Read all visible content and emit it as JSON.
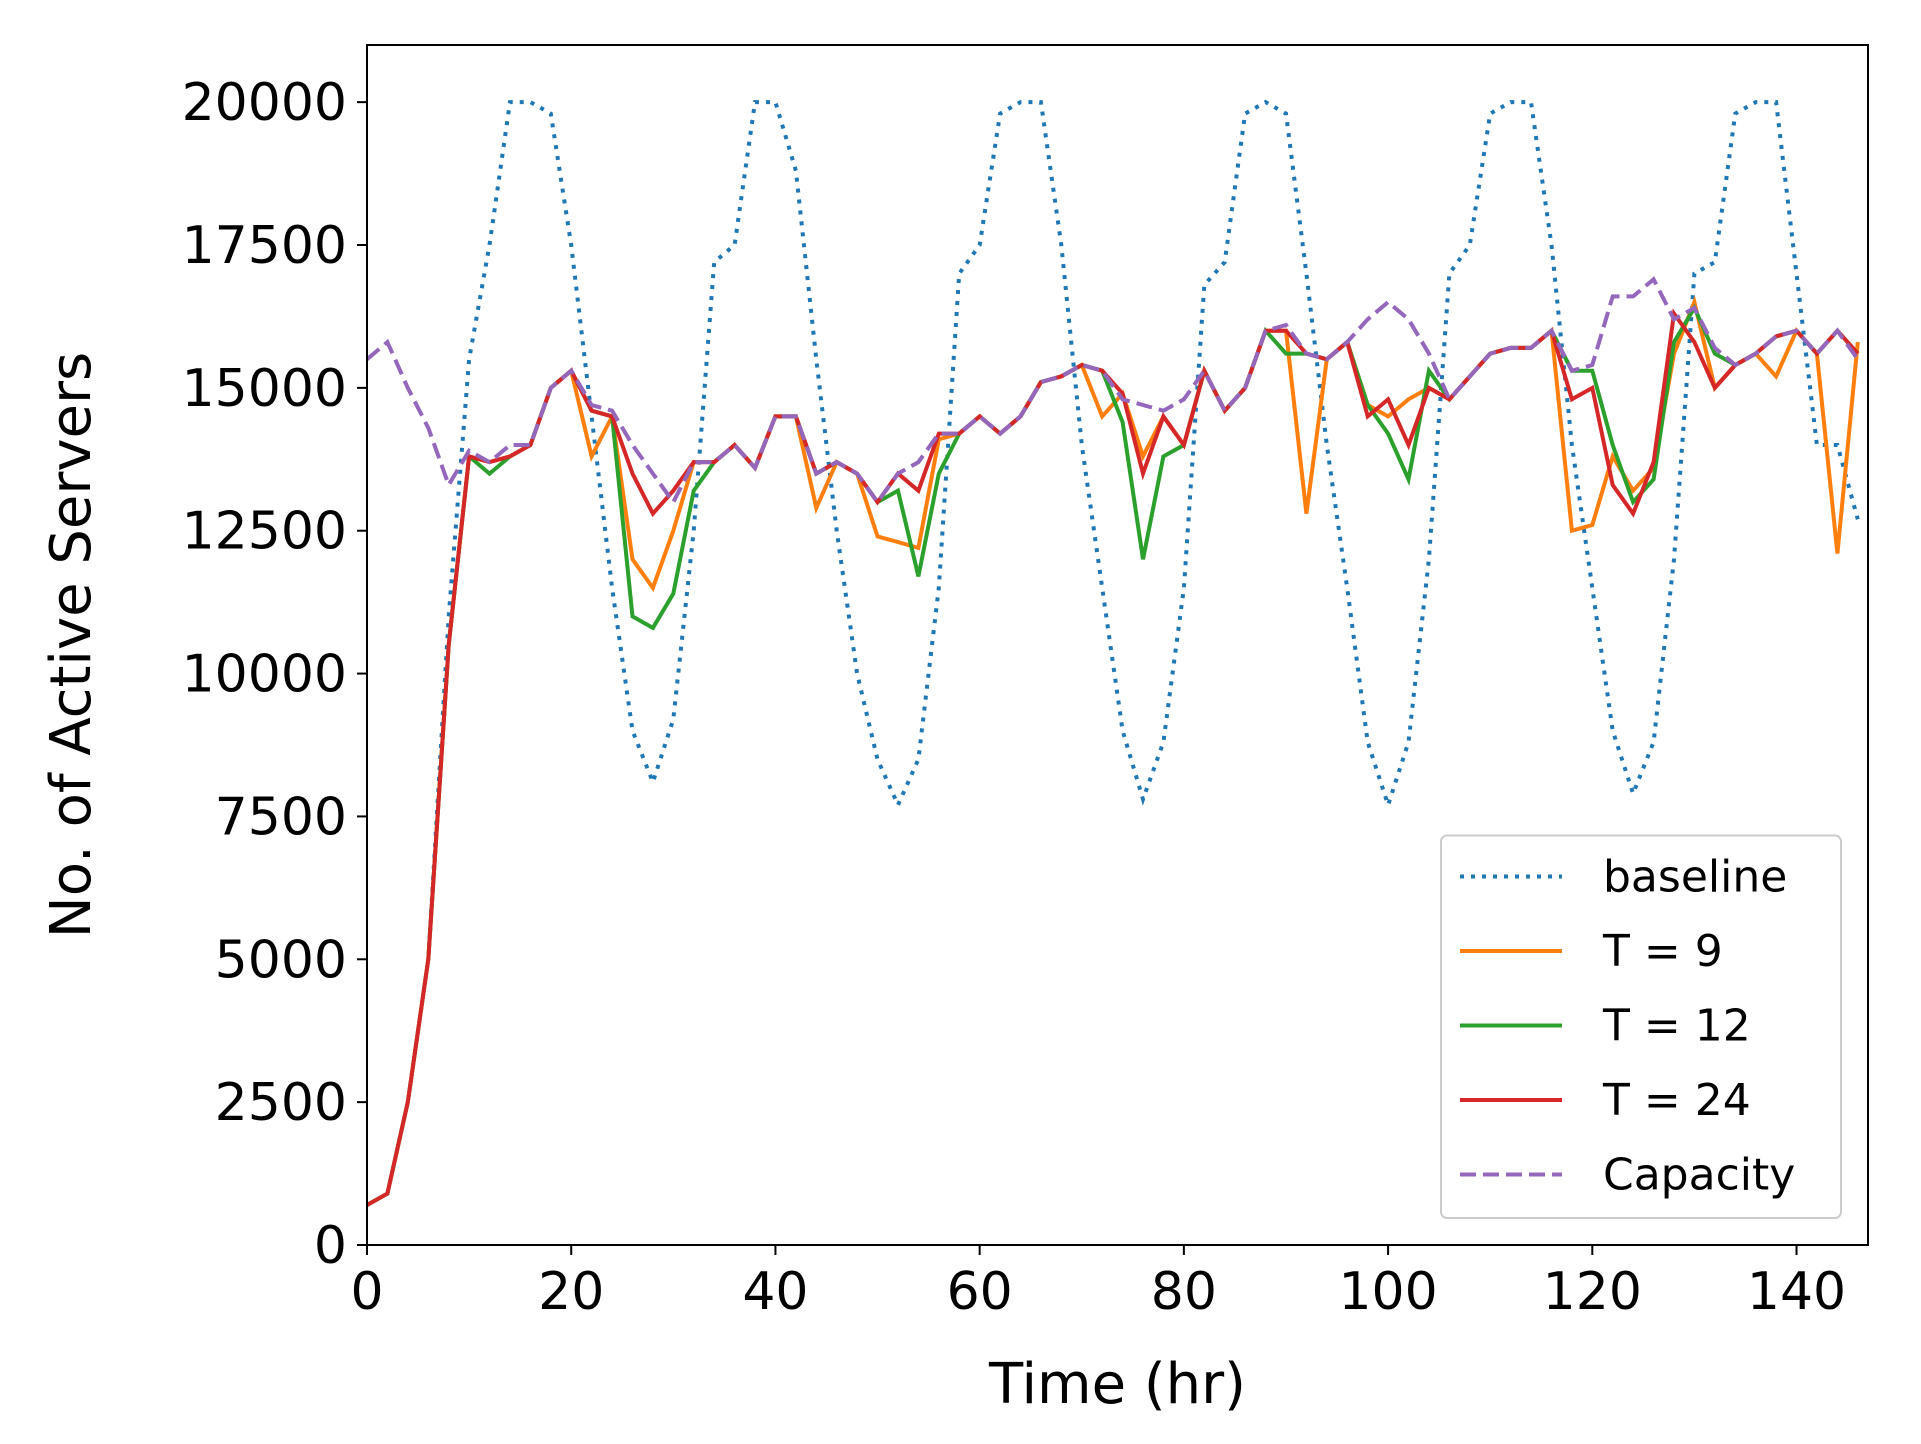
{
  "chart_data": {
    "type": "line",
    "xlabel": "Time (hr)",
    "ylabel": "No. of Active Servers",
    "x": [
      0,
      2,
      4,
      6,
      8,
      10,
      12,
      14,
      16,
      18,
      20,
      22,
      24,
      26,
      28,
      30,
      32,
      34,
      36,
      38,
      40,
      42,
      44,
      46,
      48,
      50,
      52,
      54,
      56,
      58,
      60,
      62,
      64,
      66,
      68,
      70,
      72,
      74,
      76,
      78,
      80,
      82,
      84,
      86,
      88,
      90,
      92,
      94,
      96,
      98,
      100,
      102,
      104,
      106,
      108,
      110,
      112,
      114,
      116,
      118,
      120,
      122,
      124,
      126,
      128,
      130,
      132,
      134,
      136,
      138,
      140,
      142,
      144,
      146
    ],
    "xlim": [
      0,
      147
    ],
    "xticks": [
      0,
      20,
      40,
      60,
      80,
      100,
      120,
      140
    ],
    "ylim": [
      0,
      21000
    ],
    "yticks": [
      0,
      2500,
      5000,
      7500,
      10000,
      12500,
      15000,
      17500,
      20000
    ],
    "legend": "lower right",
    "series": [
      {
        "name": "baseline",
        "color": "#1f77b4",
        "style": "dotted",
        "values": [
          700,
          900,
          2500,
          5000,
          11000,
          15500,
          17500,
          20000,
          20000,
          19800,
          17500,
          14500,
          11500,
          9000,
          8100,
          9200,
          12500,
          17200,
          17500,
          20000,
          20000,
          18800,
          15500,
          12500,
          10000,
          8500,
          7700,
          8500,
          11500,
          17000,
          17500,
          19800,
          20000,
          20000,
          17500,
          14000,
          11500,
          9000,
          7800,
          8800,
          11500,
          16800,
          17200,
          19800,
          20000,
          19800,
          17000,
          14000,
          11500,
          8800,
          7700,
          8800,
          12000,
          17000,
          17500,
          19800,
          20000,
          20000,
          17500,
          14000,
          11500,
          9000,
          7900,
          8800,
          12000,
          17000,
          17200,
          19800,
          20000,
          20000,
          17000,
          14000,
          14000,
          12700
        ]
      },
      {
        "name": "T = 9",
        "color": "#ff7f0e",
        "style": "solid",
        "values": [
          700,
          900,
          2500,
          5000,
          10500,
          13800,
          13700,
          13800,
          14000,
          15000,
          15300,
          13800,
          14500,
          12000,
          11500,
          12500,
          13700,
          13700,
          14000,
          13600,
          14500,
          14500,
          12900,
          13700,
          13500,
          12400,
          12300,
          12200,
          14100,
          14200,
          14500,
          14200,
          14500,
          15100,
          15200,
          15400,
          14500,
          14900,
          13800,
          14500,
          14000,
          15300,
          14600,
          15000,
          16000,
          16000,
          12800,
          15500,
          15800,
          14700,
          14500,
          14800,
          15000,
          14800,
          15200,
          15600,
          15700,
          15700,
          16000,
          12500,
          12600,
          13800,
          13200,
          13600,
          15600,
          16500,
          15000,
          15400,
          15600,
          15200,
          16000,
          15600,
          12100,
          15800
        ]
      },
      {
        "name": "T = 12",
        "color": "#2ca02c",
        "style": "solid",
        "values": [
          700,
          900,
          2500,
          5000,
          10500,
          13800,
          13500,
          13800,
          14000,
          15000,
          15300,
          14600,
          14500,
          11000,
          10800,
          11400,
          13200,
          13700,
          14000,
          13600,
          14500,
          14500,
          13500,
          13700,
          13500,
          13000,
          13200,
          11700,
          13500,
          14200,
          14500,
          14200,
          14500,
          15100,
          15200,
          15400,
          15300,
          14400,
          12000,
          13800,
          14000,
          15300,
          14600,
          15000,
          16000,
          15600,
          15600,
          15500,
          15800,
          14700,
          14200,
          13400,
          15300,
          14800,
          15200,
          15600,
          15700,
          15700,
          16000,
          15300,
          15300,
          14000,
          13000,
          13400,
          15800,
          16400,
          15600,
          15400,
          15600,
          15900,
          16000,
          15600,
          16000,
          15600
        ]
      },
      {
        "name": "T = 24",
        "color": "#d62728",
        "style": "solid",
        "values": [
          700,
          900,
          2500,
          5000,
          10500,
          13800,
          13700,
          13800,
          14000,
          15000,
          15300,
          14600,
          14500,
          13500,
          12800,
          13200,
          13700,
          13700,
          14000,
          13600,
          14500,
          14500,
          13500,
          13700,
          13500,
          13000,
          13500,
          13200,
          14200,
          14200,
          14500,
          14200,
          14500,
          15100,
          15200,
          15400,
          15300,
          14900,
          13500,
          14500,
          14000,
          15300,
          14600,
          15000,
          16000,
          16000,
          15600,
          15500,
          15800,
          14500,
          14800,
          14000,
          15000,
          14800,
          15200,
          15600,
          15700,
          15700,
          16000,
          14800,
          15000,
          13300,
          12800,
          13700,
          16300,
          15800,
          15000,
          15400,
          15600,
          15900,
          16000,
          15600,
          16000,
          15600
        ]
      },
      {
        "name": "Capacity",
        "color": "#9467bd",
        "style": "dashed",
        "values": [
          15500,
          15800,
          15000,
          14300,
          13300,
          13900,
          13700,
          14000,
          14000,
          15000,
          15300,
          14700,
          14600,
          14000,
          13500,
          13000,
          13700,
          13700,
          14000,
          13600,
          14500,
          14500,
          13500,
          13700,
          13500,
          13000,
          13500,
          13700,
          14200,
          14200,
          14500,
          14200,
          14500,
          15100,
          15200,
          15400,
          15300,
          14800,
          14700,
          14600,
          14800,
          15300,
          14600,
          15000,
          16000,
          16100,
          15600,
          15500,
          15800,
          16200,
          16500,
          16200,
          15600,
          14800,
          15200,
          15600,
          15700,
          15700,
          16000,
          15300,
          15400,
          16600,
          16600,
          16900,
          16200,
          16400,
          15700,
          15400,
          15600,
          15900,
          16000,
          15600,
          16000,
          15500
        ]
      }
    ]
  }
}
